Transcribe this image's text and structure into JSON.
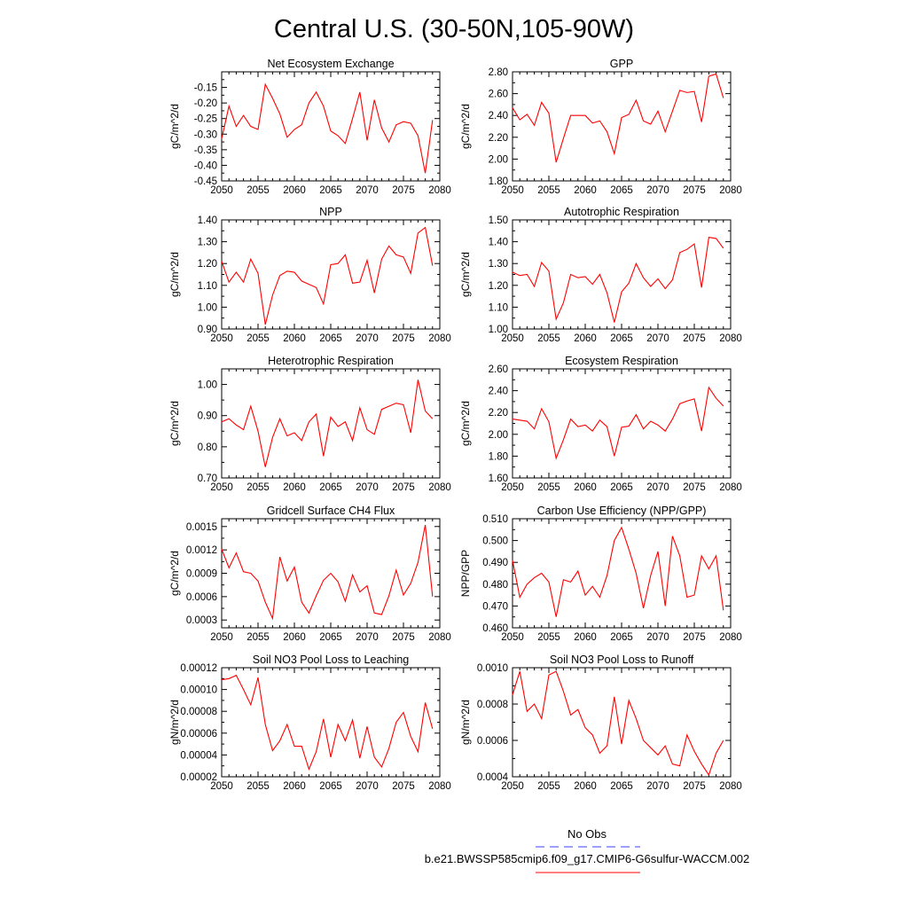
{
  "figure": {
    "title": "Central U.S. (30-50N,105-90W)",
    "legend": {
      "obs_label": "No Obs",
      "obs_color": "#6666ff",
      "model_label": "b.e21.BWSSP585cmip6.f09_g17.CMIP6-G6sulfur-WACCM.002",
      "model_color": "#ff0000"
    }
  },
  "chart_data": [
    {
      "type": "line",
      "title": "Net Ecosystem Exchange",
      "ylabel": "gC/m^2/d",
      "xlim": [
        2050,
        2080
      ],
      "ylim": [
        -0.45,
        -0.1
      ],
      "xticks": [
        "2050",
        "2055",
        "2060",
        "2065",
        "2070",
        "2075",
        "2080"
      ],
      "yticks": [
        "-0.15",
        "-0.20",
        "-0.25",
        "-0.30",
        "-0.35",
        "-0.40",
        "-0.45"
      ],
      "series": [
        {
          "color": "#ff0000",
          "x": [
            2050,
            2051,
            2052,
            2053,
            2054,
            2055,
            2056,
            2057,
            2058,
            2059,
            2060,
            2061,
            2062,
            2063,
            2064,
            2065,
            2066,
            2067,
            2068,
            2069,
            2070,
            2071,
            2072,
            2073,
            2074,
            2075,
            2076,
            2077,
            2078,
            2079
          ],
          "y": [
            -0.315,
            -0.21,
            -0.275,
            -0.24,
            -0.275,
            -0.285,
            -0.14,
            -0.185,
            -0.235,
            -0.31,
            -0.285,
            -0.27,
            -0.2,
            -0.165,
            -0.21,
            -0.29,
            -0.305,
            -0.33,
            -0.25,
            -0.165,
            -0.32,
            -0.19,
            -0.28,
            -0.325,
            -0.27,
            -0.26,
            -0.265,
            -0.305,
            -0.425,
            -0.255
          ]
        }
      ]
    },
    {
      "type": "line",
      "title": "GPP",
      "ylabel": "gC/m^2/d",
      "xlim": [
        2050,
        2080
      ],
      "ylim": [
        1.8,
        2.8
      ],
      "xticks": [
        "2050",
        "2055",
        "2060",
        "2065",
        "2070",
        "2075",
        "2080"
      ],
      "yticks": [
        "1.80",
        "2.00",
        "2.20",
        "2.40",
        "2.60",
        "2.80"
      ],
      "series": [
        {
          "color": "#ff0000",
          "x": [
            2050,
            2051,
            2052,
            2053,
            2054,
            2055,
            2056,
            2057,
            2058,
            2059,
            2060,
            2061,
            2062,
            2063,
            2064,
            2065,
            2066,
            2067,
            2068,
            2069,
            2070,
            2071,
            2072,
            2073,
            2074,
            2075,
            2076,
            2077,
            2078,
            2079
          ],
          "y": [
            2.47,
            2.36,
            2.41,
            2.31,
            2.52,
            2.42,
            1.97,
            2.19,
            2.4,
            2.4,
            2.4,
            2.33,
            2.35,
            2.25,
            2.05,
            2.38,
            2.41,
            2.54,
            2.35,
            2.32,
            2.44,
            2.25,
            2.44,
            2.63,
            2.61,
            2.62,
            2.34,
            2.76,
            2.78,
            2.56
          ]
        }
      ]
    },
    {
      "type": "line",
      "title": "NPP",
      "ylabel": "gC/m^2/d",
      "xlim": [
        2050,
        2080
      ],
      "ylim": [
        0.9,
        1.4
      ],
      "xticks": [
        "2050",
        "2055",
        "2060",
        "2065",
        "2070",
        "2075",
        "2080"
      ],
      "yticks": [
        "0.90",
        "1.00",
        "1.10",
        "1.20",
        "1.30",
        "1.40"
      ],
      "series": [
        {
          "color": "#ff0000",
          "x": [
            2050,
            2051,
            2052,
            2053,
            2054,
            2055,
            2056,
            2057,
            2058,
            2059,
            2060,
            2061,
            2062,
            2063,
            2064,
            2065,
            2066,
            2067,
            2068,
            2069,
            2070,
            2071,
            2072,
            2073,
            2074,
            2075,
            2076,
            2077,
            2078,
            2079
          ],
          "y": [
            1.21,
            1.115,
            1.16,
            1.115,
            1.22,
            1.155,
            0.92,
            1.055,
            1.145,
            1.165,
            1.16,
            1.12,
            1.105,
            1.09,
            1.015,
            1.195,
            1.2,
            1.24,
            1.11,
            1.115,
            1.215,
            1.065,
            1.22,
            1.28,
            1.24,
            1.23,
            1.155,
            1.34,
            1.365,
            1.19
          ]
        }
      ]
    },
    {
      "type": "line",
      "title": "Autotrophic Respiration",
      "ylabel": "gC/m^2/d",
      "xlim": [
        2050,
        2080
      ],
      "ylim": [
        1.0,
        1.5
      ],
      "xticks": [
        "2050",
        "2055",
        "2060",
        "2065",
        "2070",
        "2075",
        "2080"
      ],
      "yticks": [
        "1.00",
        "1.10",
        "1.20",
        "1.30",
        "1.40",
        "1.50"
      ],
      "series": [
        {
          "color": "#ff0000",
          "x": [
            2050,
            2051,
            2052,
            2053,
            2054,
            2055,
            2056,
            2057,
            2058,
            2059,
            2060,
            2061,
            2062,
            2063,
            2064,
            2065,
            2066,
            2067,
            2068,
            2069,
            2070,
            2071,
            2072,
            2073,
            2074,
            2075,
            2076,
            2077,
            2078,
            2079
          ],
          "y": [
            1.26,
            1.245,
            1.25,
            1.195,
            1.305,
            1.265,
            1.045,
            1.12,
            1.25,
            1.235,
            1.24,
            1.205,
            1.25,
            1.165,
            1.03,
            1.17,
            1.21,
            1.3,
            1.235,
            1.195,
            1.23,
            1.185,
            1.225,
            1.35,
            1.365,
            1.39,
            1.19,
            1.42,
            1.415,
            1.37
          ]
        }
      ]
    },
    {
      "type": "line",
      "title": "Heterotrophic Respiration",
      "ylabel": "gC/m^2/d",
      "xlim": [
        2050,
        2080
      ],
      "ylim": [
        0.7,
        1.05
      ],
      "xticks": [
        "2050",
        "2055",
        "2060",
        "2065",
        "2070",
        "2075",
        "2080"
      ],
      "yticks": [
        "0.70",
        "0.80",
        "0.90",
        "1.00"
      ],
      "series": [
        {
          "color": "#ff0000",
          "x": [
            2050,
            2051,
            2052,
            2053,
            2054,
            2055,
            2056,
            2057,
            2058,
            2059,
            2060,
            2061,
            2062,
            2063,
            2064,
            2065,
            2066,
            2067,
            2068,
            2069,
            2070,
            2071,
            2072,
            2073,
            2074,
            2075,
            2076,
            2077,
            2078,
            2079
          ],
          "y": [
            0.88,
            0.89,
            0.87,
            0.855,
            0.93,
            0.85,
            0.735,
            0.83,
            0.89,
            0.835,
            0.845,
            0.82,
            0.88,
            0.905,
            0.77,
            0.895,
            0.865,
            0.88,
            0.82,
            0.925,
            0.855,
            0.84,
            0.92,
            0.93,
            0.94,
            0.935,
            0.845,
            1.015,
            0.915,
            0.89
          ]
        }
      ]
    },
    {
      "type": "line",
      "title": "Ecosystem Respiration",
      "ylabel": "gC/m^2/d",
      "xlim": [
        2050,
        2080
      ],
      "ylim": [
        1.6,
        2.6
      ],
      "xticks": [
        "2050",
        "2055",
        "2060",
        "2065",
        "2070",
        "2075",
        "2080"
      ],
      "yticks": [
        "1.60",
        "1.80",
        "2.00",
        "2.20",
        "2.40",
        "2.60"
      ],
      "series": [
        {
          "color": "#ff0000",
          "x": [
            2050,
            2051,
            2052,
            2053,
            2054,
            2055,
            2056,
            2057,
            2058,
            2059,
            2060,
            2061,
            2062,
            2063,
            2064,
            2065,
            2066,
            2067,
            2068,
            2069,
            2070,
            2071,
            2072,
            2073,
            2074,
            2075,
            2076,
            2077,
            2078,
            2079
          ],
          "y": [
            2.14,
            2.13,
            2.12,
            2.05,
            2.235,
            2.115,
            1.78,
            1.95,
            2.14,
            2.07,
            2.085,
            2.03,
            2.13,
            2.07,
            1.8,
            2.065,
            2.075,
            2.18,
            2.05,
            2.12,
            2.085,
            2.03,
            2.14,
            2.28,
            2.305,
            2.325,
            2.03,
            2.43,
            2.33,
            2.26
          ]
        }
      ]
    },
    {
      "type": "line",
      "title": "Gridcell Surface CH4 Flux",
      "ylabel": "gC/m^2/d",
      "xlim": [
        2050,
        2080
      ],
      "ylim": [
        0.0002,
        0.0016
      ],
      "xticks": [
        "2050",
        "2055",
        "2060",
        "2065",
        "2070",
        "2075",
        "2080"
      ],
      "yticks": [
        "0.0003",
        "0.0006",
        "0.0009",
        "0.0012",
        "0.0015"
      ],
      "series": [
        {
          "color": "#ff0000",
          "x": [
            2050,
            2051,
            2052,
            2053,
            2054,
            2055,
            2056,
            2057,
            2058,
            2059,
            2060,
            2061,
            2062,
            2063,
            2064,
            2065,
            2066,
            2067,
            2068,
            2069,
            2070,
            2071,
            2072,
            2073,
            2074,
            2075,
            2076,
            2077,
            2078,
            2079
          ],
          "y": [
            0.00121,
            0.00097,
            0.00116,
            0.00092,
            0.0009,
            0.0008,
            0.00053,
            0.00032,
            0.00111,
            0.0008,
            0.00098,
            0.00053,
            0.00039,
            0.00061,
            0.00081,
            0.0009,
            0.00079,
            0.00054,
            0.00088,
            0.00066,
            0.00074,
            0.00039,
            0.00037,
            0.00061,
            0.00094,
            0.00062,
            0.00077,
            0.00104,
            0.00152,
            0.0006
          ]
        }
      ]
    },
    {
      "type": "line",
      "title": "Carbon Use Efficiency (NPP/GPP)",
      "ylabel": "NPP/GPP",
      "xlim": [
        2050,
        2080
      ],
      "ylim": [
        0.46,
        0.51
      ],
      "xticks": [
        "2050",
        "2055",
        "2060",
        "2065",
        "2070",
        "2075",
        "2080"
      ],
      "yticks": [
        "0.460",
        "0.470",
        "0.480",
        "0.490",
        "0.500",
        "0.510"
      ],
      "series": [
        {
          "color": "#ff0000",
          "x": [
            2050,
            2051,
            2052,
            2053,
            2054,
            2055,
            2056,
            2057,
            2058,
            2059,
            2060,
            2061,
            2062,
            2063,
            2064,
            2065,
            2066,
            2067,
            2068,
            2069,
            2070,
            2071,
            2072,
            2073,
            2074,
            2075,
            2076,
            2077,
            2078,
            2079
          ],
          "y": [
            0.491,
            0.474,
            0.48,
            0.483,
            0.485,
            0.481,
            0.465,
            0.482,
            0.481,
            0.486,
            0.475,
            0.479,
            0.474,
            0.484,
            0.5,
            0.506,
            0.496,
            0.485,
            0.469,
            0.484,
            0.495,
            0.47,
            0.502,
            0.493,
            0.474,
            0.475,
            0.493,
            0.487,
            0.493,
            0.468
          ]
        }
      ]
    },
    {
      "type": "line",
      "title": "Soil NO3 Pool Loss to Leaching",
      "ylabel": "gN/m^2/d",
      "xlim": [
        2050,
        2080
      ],
      "ylim": [
        2e-05,
        0.00012
      ],
      "xticks": [
        "2050",
        "2055",
        "2060",
        "2065",
        "2070",
        "2075",
        "2080"
      ],
      "yticks": [
        "0.00002",
        "0.00004",
        "0.00006",
        "0.00008",
        "0.00010",
        "0.00012"
      ],
      "series": [
        {
          "color": "#ff0000",
          "x": [
            2050,
            2051,
            2052,
            2053,
            2054,
            2055,
            2056,
            2057,
            2058,
            2059,
            2060,
            2061,
            2062,
            2063,
            2064,
            2065,
            2066,
            2067,
            2068,
            2069,
            2070,
            2071,
            2072,
            2073,
            2074,
            2075,
            2076,
            2077,
            2078,
            2079
          ],
          "y": [
            0.000109,
            0.00011,
            0.000113,
            0.0001,
            8.6e-05,
            0.000111,
            6.8e-05,
            4.4e-05,
            5.3e-05,
            6.8e-05,
            4.8e-05,
            4.8e-05,
            2.7e-05,
            4.3e-05,
            7.3e-05,
            3.8e-05,
            6.8e-05,
            5.3e-05,
            7.2e-05,
            3.7e-05,
            6.6e-05,
            3.8e-05,
            2.9e-05,
            4.6e-05,
            7e-05,
            7.9e-05,
            5.7e-05,
            4.3e-05,
            8.8e-05,
            6.4e-05
          ]
        }
      ]
    },
    {
      "type": "line",
      "title": "Soil NO3 Pool Loss to Runoff",
      "ylabel": "gN/m^2/d",
      "xlim": [
        2050,
        2080
      ],
      "ylim": [
        0.0004,
        0.001
      ],
      "xticks": [
        "2050",
        "2055",
        "2060",
        "2065",
        "2070",
        "2075",
        "2080"
      ],
      "yticks": [
        "0.0004",
        "0.0006",
        "0.0008",
        "0.0010"
      ],
      "series": [
        {
          "color": "#ff0000",
          "x": [
            2050,
            2051,
            2052,
            2053,
            2054,
            2055,
            2056,
            2057,
            2058,
            2059,
            2060,
            2061,
            2062,
            2063,
            2064,
            2065,
            2066,
            2067,
            2068,
            2069,
            2070,
            2071,
            2072,
            2073,
            2074,
            2075,
            2076,
            2077,
            2078,
            2079
          ],
          "y": [
            0.00085,
            0.00098,
            0.00076,
            0.0008,
            0.00072,
            0.00096,
            0.00098,
            0.00087,
            0.00074,
            0.00077,
            0.00067,
            0.00063,
            0.00053,
            0.00057,
            0.00084,
            0.00058,
            0.00082,
            0.00072,
            0.0006,
            0.00056,
            0.00052,
            0.00057,
            0.00047,
            0.00046,
            0.00063,
            0.00054,
            0.00047,
            0.00041,
            0.00053,
            0.0006
          ]
        }
      ]
    }
  ]
}
